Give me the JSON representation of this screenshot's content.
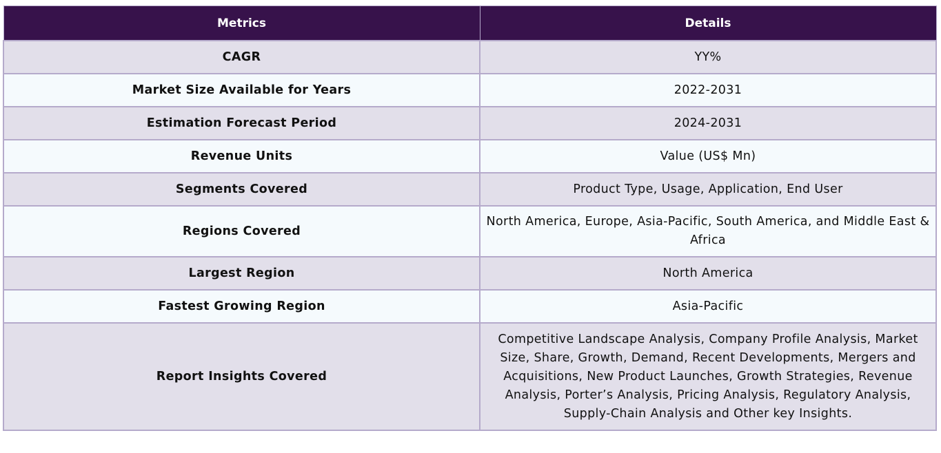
{
  "table": {
    "headers": [
      "Metrics",
      "Details"
    ],
    "rows": [
      {
        "metric": "CAGR",
        "detail": "YY%"
      },
      {
        "metric": "Market Size Available for Years",
        "detail": "2022-2031"
      },
      {
        "metric": "Estimation Forecast Period",
        "detail": "2024-2031"
      },
      {
        "metric": "Revenue Units",
        "detail": "Value (US$ Mn)"
      },
      {
        "metric": "Segments Covered",
        "detail": "Product Type, Usage, Application, End User"
      },
      {
        "metric": "Regions Covered",
        "detail": "North America, Europe, Asia-Pacific, South America, and Middle East & Africa"
      },
      {
        "metric": "Largest Region",
        "detail": "North America"
      },
      {
        "metric": "Fastest Growing Region",
        "detail": "Asia-Pacific"
      },
      {
        "metric": "Report Insights Covered",
        "detail": "Competitive Landscape Analysis, Company Profile Analysis, Market Size, Share, Growth, Demand, Recent Developments, Mergers and Acquisitions, New Product Launches, Growth Strategies, Revenue Analysis, Porter’s Analysis, Pricing Analysis, Regulatory Analysis, Supply-Chain Analysis and Other key Insights."
      }
    ]
  },
  "colors": {
    "header_bg": "#37124b",
    "row_odd_bg": "#e2dfea",
    "row_even_bg": "#f5fafd",
    "border": "#b5aacb"
  }
}
